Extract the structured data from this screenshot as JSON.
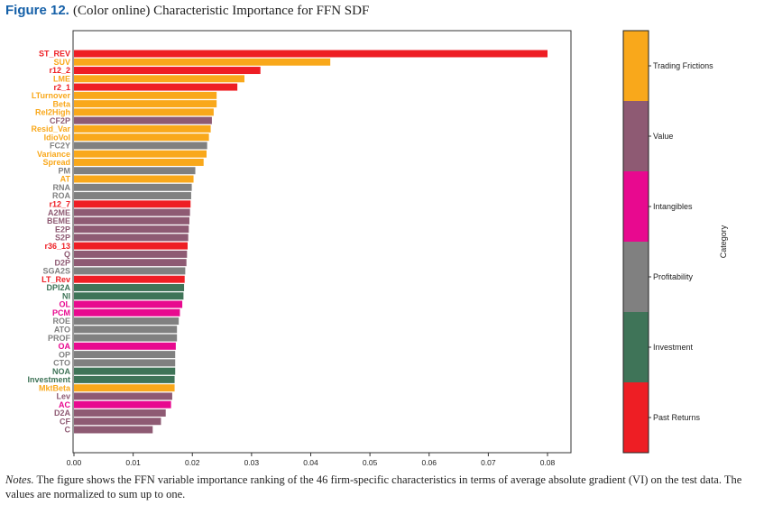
{
  "figure": {
    "label": "Figure 12.",
    "title": "(Color online) Characteristic Importance for FFN SDF"
  },
  "notes": {
    "lead": "Notes.",
    "text": "The figure shows the FFN variable importance ranking of the 46 firm-specific characteristics in terms of average absolute gradient (VI) on the test data. The values are normalized to sum up to one."
  },
  "colors": {
    "Trading Frictions": "#f9a81b",
    "Value": "#8e5a73",
    "Intangibles": "#e8098f",
    "Profitability": "#808080",
    "Investment": "#3f7458",
    "Past Returns": "#ee1e24"
  },
  "chart_data": {
    "type": "bar",
    "orientation": "horizontal",
    "xlim": [
      0,
      0.085
    ],
    "xticks": [
      "0.00",
      "0.01",
      "0.02",
      "0.03",
      "0.04",
      "0.05",
      "0.06",
      "0.07",
      "0.08"
    ],
    "colorbar_label": "Category",
    "legend_categories": [
      "Trading Frictions",
      "Value",
      "Intangibles",
      "Profitability",
      "Investment",
      "Past Returns"
    ],
    "bars": [
      {
        "label": "ST_REV",
        "value": 0.08,
        "category": "Past Returns"
      },
      {
        "label": "SUV",
        "value": 0.0433,
        "category": "Trading Frictions"
      },
      {
        "label": "r12_2",
        "value": 0.0315,
        "category": "Past Returns"
      },
      {
        "label": "LME",
        "value": 0.0288,
        "category": "Trading Frictions"
      },
      {
        "label": "r2_1",
        "value": 0.0276,
        "category": "Past Returns"
      },
      {
        "label": "LTurnover",
        "value": 0.0241,
        "category": "Trading Frictions"
      },
      {
        "label": "Beta",
        "value": 0.0241,
        "category": "Trading Frictions"
      },
      {
        "label": "Rel2High",
        "value": 0.0236,
        "category": "Trading Frictions"
      },
      {
        "label": "CF2P",
        "value": 0.0233,
        "category": "Value"
      },
      {
        "label": "Resid_Var",
        "value": 0.0231,
        "category": "Trading Frictions"
      },
      {
        "label": "IdioVol",
        "value": 0.0228,
        "category": "Trading Frictions"
      },
      {
        "label": "FC2Y",
        "value": 0.0225,
        "category": "Profitability"
      },
      {
        "label": "Variance",
        "value": 0.0224,
        "category": "Trading Frictions"
      },
      {
        "label": "Spread",
        "value": 0.0219,
        "category": "Trading Frictions"
      },
      {
        "label": "PM",
        "value": 0.0205,
        "category": "Profitability"
      },
      {
        "label": "AT",
        "value": 0.0202,
        "category": "Trading Frictions"
      },
      {
        "label": "RNA",
        "value": 0.0199,
        "category": "Profitability"
      },
      {
        "label": "ROA",
        "value": 0.0198,
        "category": "Profitability"
      },
      {
        "label": "r12_7",
        "value": 0.0197,
        "category": "Past Returns"
      },
      {
        "label": "A2ME",
        "value": 0.0196,
        "category": "Value"
      },
      {
        "label": "BEME",
        "value": 0.0195,
        "category": "Value"
      },
      {
        "label": "E2P",
        "value": 0.0194,
        "category": "Value"
      },
      {
        "label": "S2P",
        "value": 0.0193,
        "category": "Value"
      },
      {
        "label": "r36_13",
        "value": 0.0192,
        "category": "Past Returns"
      },
      {
        "label": "Q",
        "value": 0.0191,
        "category": "Value"
      },
      {
        "label": "D2P",
        "value": 0.019,
        "category": "Value"
      },
      {
        "label": "SGA2S",
        "value": 0.0188,
        "category": "Profitability"
      },
      {
        "label": "LT_Rev",
        "value": 0.0187,
        "category": "Past Returns"
      },
      {
        "label": "DPI2A",
        "value": 0.0186,
        "category": "Investment"
      },
      {
        "label": "NI",
        "value": 0.0185,
        "category": "Investment"
      },
      {
        "label": "OL",
        "value": 0.0183,
        "category": "Intangibles"
      },
      {
        "label": "PCM",
        "value": 0.0179,
        "category": "Intangibles"
      },
      {
        "label": "ROE",
        "value": 0.0177,
        "category": "Profitability"
      },
      {
        "label": "ATO",
        "value": 0.0174,
        "category": "Profitability"
      },
      {
        "label": "PROF",
        "value": 0.0174,
        "category": "Profitability"
      },
      {
        "label": "OA",
        "value": 0.0172,
        "category": "Intangibles"
      },
      {
        "label": "OP",
        "value": 0.0171,
        "category": "Profitability"
      },
      {
        "label": "CTO",
        "value": 0.0171,
        "category": "Profitability"
      },
      {
        "label": "NOA",
        "value": 0.0171,
        "category": "Investment"
      },
      {
        "label": "Investment",
        "value": 0.017,
        "category": "Investment"
      },
      {
        "label": "MktBeta",
        "value": 0.017,
        "category": "Trading Frictions"
      },
      {
        "label": "Lev",
        "value": 0.0166,
        "category": "Value"
      },
      {
        "label": "AC",
        "value": 0.0164,
        "category": "Intangibles"
      },
      {
        "label": "D2A",
        "value": 0.0155,
        "category": "Value"
      },
      {
        "label": "CF",
        "value": 0.0147,
        "category": "Value"
      },
      {
        "label": "C",
        "value": 0.0133,
        "category": "Value"
      }
    ]
  }
}
